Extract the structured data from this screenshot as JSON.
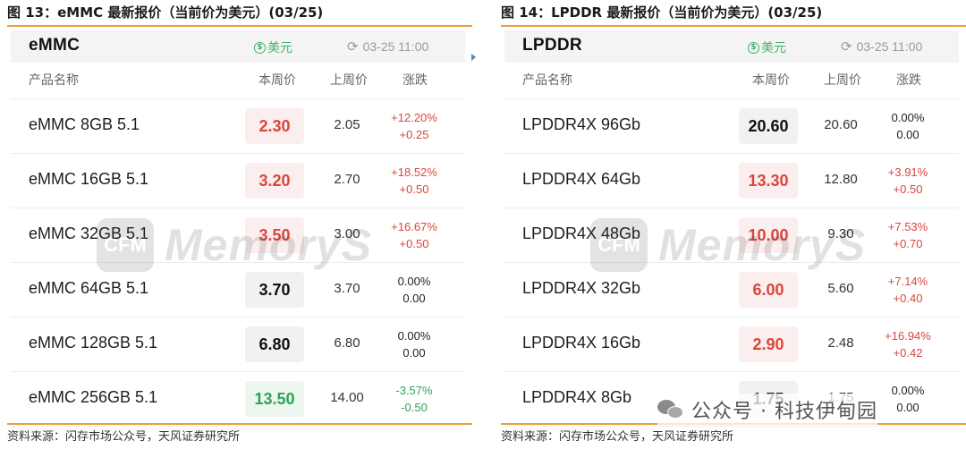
{
  "figures": [
    {
      "title": "图 13：eMMC 最新报价（当前价为美元）(03/25)",
      "card_title": "eMMC",
      "currency": "美元",
      "currency_symbol": "$",
      "timestamp": "03-25 11:00",
      "columns": [
        "产品名称",
        "本周价",
        "上周价",
        "涨跌"
      ],
      "rows": [
        {
          "name": "eMMC 8GB 5.1",
          "current": "2.30",
          "previous": "2.05",
          "change_pct": "+12.20%",
          "change_abs": "+0.25",
          "trend": "up"
        },
        {
          "name": "eMMC 16GB 5.1",
          "current": "3.20",
          "previous": "2.70",
          "change_pct": "+18.52%",
          "change_abs": "+0.50",
          "trend": "up"
        },
        {
          "name": "eMMC 32GB 5.1",
          "current": "3.50",
          "previous": "3.00",
          "change_pct": "+16.67%",
          "change_abs": "+0.50",
          "trend": "up"
        },
        {
          "name": "eMMC 64GB 5.1",
          "current": "3.70",
          "previous": "3.70",
          "change_pct": "0.00%",
          "change_abs": "0.00",
          "trend": "flat"
        },
        {
          "name": "eMMC 128GB 5.1",
          "current": "6.80",
          "previous": "6.80",
          "change_pct": "0.00%",
          "change_abs": "0.00",
          "trend": "flat"
        },
        {
          "name": "eMMC 256GB 5.1",
          "current": "13.50",
          "previous": "14.00",
          "change_pct": "-3.57%",
          "change_abs": "-0.50",
          "trend": "down"
        }
      ],
      "source": "资料来源：闪存市场公众号，天风证券研究所"
    },
    {
      "title": "图 14：LPDDR 最新报价（当前价为美元）(03/25)",
      "card_title": "LPDDR",
      "currency": "美元",
      "currency_symbol": "$",
      "timestamp": "03-25 11:00",
      "columns": [
        "产品名称",
        "本周价",
        "上周价",
        "涨跌"
      ],
      "rows": [
        {
          "name": "LPDDR4X 96Gb",
          "current": "20.60",
          "previous": "20.60",
          "change_pct": "0.00%",
          "change_abs": "0.00",
          "trend": "flat"
        },
        {
          "name": "LPDDR4X 64Gb",
          "current": "13.30",
          "previous": "12.80",
          "change_pct": "+3.91%",
          "change_abs": "+0.50",
          "trend": "up"
        },
        {
          "name": "LPDDR4X 48Gb",
          "current": "10.00",
          "previous": "9.30",
          "change_pct": "+7.53%",
          "change_abs": "+0.70",
          "trend": "up"
        },
        {
          "name": "LPDDR4X 32Gb",
          "current": "6.00",
          "previous": "5.60",
          "change_pct": "+7.14%",
          "change_abs": "+0.40",
          "trend": "up"
        },
        {
          "name": "LPDDR4X 16Gb",
          "current": "2.90",
          "previous": "2.48",
          "change_pct": "+16.94%",
          "change_abs": "+0.42",
          "trend": "up"
        },
        {
          "name": "LPDDR4X 8Gb",
          "current": "1.75",
          "previous": "1.75",
          "change_pct": "0.00%",
          "change_abs": "0.00",
          "trend": "flat"
        }
      ],
      "source": "资料来源：闪存市场公众号，天风证券研究所"
    }
  ],
  "watermark": {
    "logo": "CFM",
    "text": "MemoryS"
  },
  "wechat_watermark": "公众号 · 科技伊甸园",
  "colors": {
    "rule": "#e8a03c",
    "up": "#d9473c",
    "down": "#2da35a",
    "currency": "#3cb46e"
  }
}
